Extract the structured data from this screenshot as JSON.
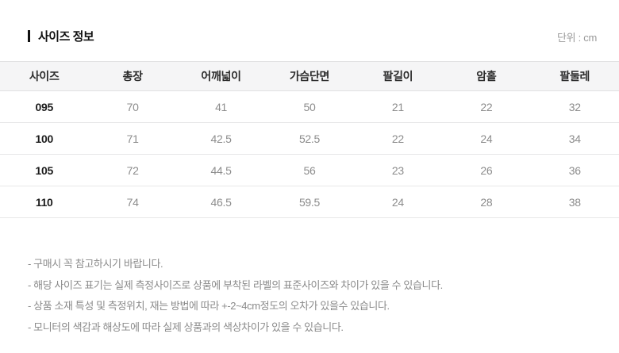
{
  "page": {
    "title": "사이즈 정보",
    "unit_label": "단위 : cm"
  },
  "table": {
    "columns": [
      "사이즈",
      "총장",
      "어깨넓이",
      "가슴단면",
      "팔길이",
      "암홀",
      "팔둘레"
    ],
    "rows": [
      [
        "095",
        "70",
        "41",
        "50",
        "21",
        "22",
        "32"
      ],
      [
        "100",
        "71",
        "42.5",
        "52.5",
        "22",
        "24",
        "34"
      ],
      [
        "105",
        "72",
        "44.5",
        "56",
        "23",
        "26",
        "36"
      ],
      [
        "110",
        "74",
        "46.5",
        "59.5",
        "24",
        "28",
        "38"
      ]
    ]
  },
  "notes": [
    "- 구매시 꼭 참고하시기 바랍니다.",
    "- 해당 사이즈 표기는 실제 측정사이즈로 상품에 부착된 라벨의 표준사이즈와 차이가 있을 수 있습니다.",
    "- 상품 소재 특성 및 측정위치, 재는 방법에 따라 +-2~4cm정도의 오차가 있을수 있습니다.",
    "- 모니터의 색감과 해상도에 따라 실제 상품과의 색상차이가 있을 수 있습니다."
  ],
  "colors": {
    "header_background": "#f5f5f6",
    "row_border": "#e7e7e8",
    "text_primary": "#1c1c1c",
    "text_secondary": "#8c8c8c",
    "unit_label": "#999999"
  }
}
